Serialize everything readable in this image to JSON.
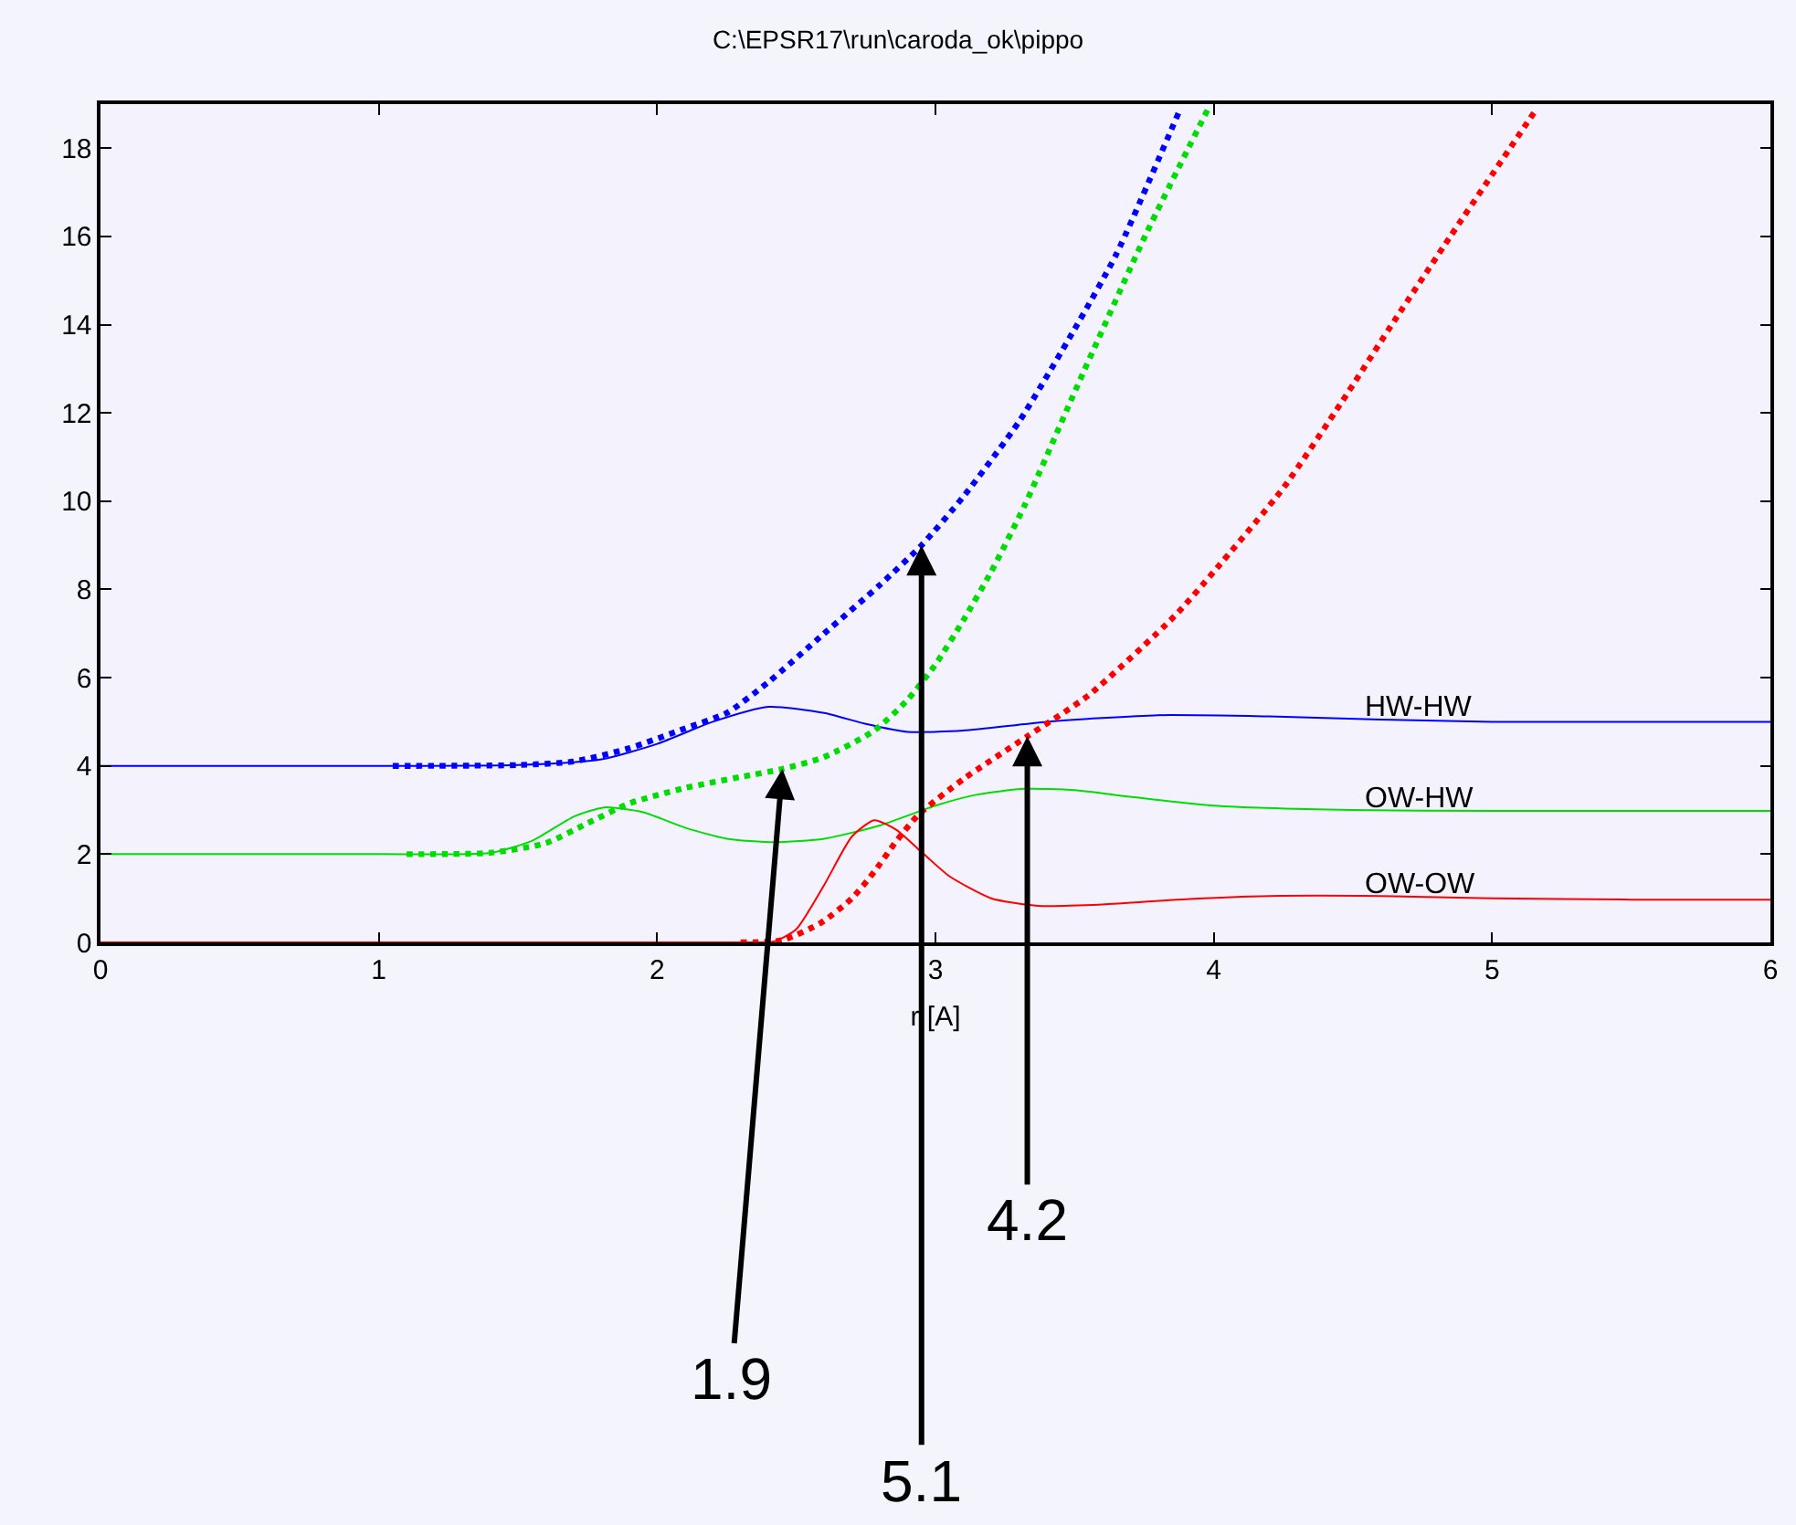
{
  "chart_data": {
    "type": "line",
    "title": "C:\\EPSR17\\run\\caroda_ok\\pippo",
    "xlabel": "r [A]",
    "xlim": [
      0,
      6
    ],
    "xticks": [
      0,
      1,
      2,
      3,
      4,
      5,
      6
    ],
    "ylim": [
      0,
      19
    ],
    "yticks": [
      0,
      2,
      4,
      6,
      8,
      10,
      12,
      14,
      16,
      18
    ],
    "grid": false,
    "legend": false,
    "marker": "none",
    "series": [
      {
        "name": "HW-HW",
        "color": "#0000ff",
        "line_style": "solid",
        "x": [
          0,
          1.0,
          1.5,
          1.8,
          2.0,
          2.2,
          2.4,
          2.6,
          2.75,
          2.9,
          3.1,
          3.4,
          3.8,
          4.2,
          4.6,
          5.0,
          5.5,
          6.0
        ],
        "values": [
          4.0,
          4.0,
          4.02,
          4.15,
          4.5,
          5.0,
          5.34,
          5.2,
          4.95,
          4.77,
          4.8,
          5.0,
          5.15,
          5.12,
          5.05,
          5.0,
          5.0,
          5.0
        ]
      },
      {
        "name": "OW-HW",
        "color": "#00dd00",
        "line_style": "solid",
        "x": [
          0,
          1.0,
          1.4,
          1.55,
          1.7,
          1.81,
          1.95,
          2.1,
          2.25,
          2.42,
          2.6,
          2.8,
          3.0,
          3.15,
          3.32,
          3.5,
          3.7,
          4.0,
          4.5,
          5.0,
          5.5,
          6.0
        ],
        "values": [
          2.0,
          2.0,
          2.03,
          2.3,
          2.85,
          3.06,
          2.95,
          2.6,
          2.35,
          2.27,
          2.35,
          2.65,
          3.1,
          3.35,
          3.48,
          3.45,
          3.3,
          3.1,
          3.0,
          2.98,
          2.98,
          2.98
        ]
      },
      {
        "name": "OW-OW",
        "color": "#ff0000",
        "line_style": "solid",
        "x": [
          0,
          2.3,
          2.42,
          2.5,
          2.6,
          2.7,
          2.78,
          2.86,
          2.95,
          3.05,
          3.2,
          3.37,
          3.6,
          3.9,
          4.2,
          4.6,
          5.0,
          5.5,
          6.0
        ],
        "values": [
          0,
          0,
          0.02,
          0.3,
          1.3,
          2.4,
          2.77,
          2.55,
          2.05,
          1.5,
          1.0,
          0.83,
          0.86,
          0.98,
          1.05,
          1.05,
          1.0,
          0.97,
          0.97
        ]
      },
      {
        "color": "#0000ff",
        "line_style": "dotted",
        "x": [
          1.05,
          1.5,
          1.7,
          1.9,
          2.1,
          2.25,
          2.4,
          2.6,
          2.8,
          2.95,
          3.1,
          3.3,
          3.5,
          3.65,
          3.88
        ],
        "values": [
          4.0,
          4.02,
          4.1,
          4.4,
          4.85,
          5.2,
          5.9,
          7.0,
          8.1,
          9.0,
          10.1,
          11.8,
          13.9,
          15.6,
          18.9
        ]
      },
      {
        "color": "#00dd00",
        "line_style": "dotted",
        "x": [
          1.1,
          1.4,
          1.6,
          1.75,
          1.9,
          2.1,
          2.3,
          2.45,
          2.6,
          2.78,
          2.9,
          3.0,
          3.1,
          3.2,
          3.32,
          3.53,
          3.76,
          3.98
        ],
        "values": [
          2.0,
          2.03,
          2.25,
          2.7,
          3.15,
          3.5,
          3.75,
          3.93,
          4.2,
          4.8,
          5.5,
          6.3,
          7.3,
          8.4,
          9.9,
          12.9,
          16.1,
          18.9
        ]
      },
      {
        "color": "#ff0000",
        "line_style": "dotted",
        "x": [
          2.3,
          2.45,
          2.59,
          2.7,
          2.78,
          2.86,
          2.94,
          3.1,
          3.33,
          3.55,
          3.86,
          4.0,
          4.25,
          4.46,
          4.65,
          4.85,
          5.0,
          5.15
        ],
        "values": [
          0,
          0.05,
          0.45,
          1.0,
          1.6,
          2.3,
          2.9,
          3.7,
          4.67,
          5.6,
          7.4,
          8.4,
          10.3,
          12.25,
          14.1,
          16.0,
          17.4,
          18.8
        ]
      }
    ],
    "annotations": [
      {
        "text": "1.9",
        "x": 2.45,
        "y": 3.93
      },
      {
        "text": "5.1",
        "x": 2.95,
        "y": 9.0
      },
      {
        "text": "4.2",
        "x": 3.33,
        "y": 4.67
      }
    ]
  }
}
